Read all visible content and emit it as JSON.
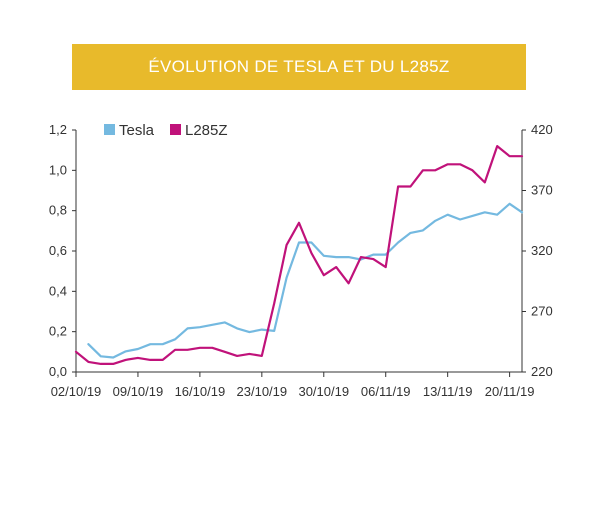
{
  "colors": {
    "title_bg": "#E8BA2B",
    "tesla": "#74B9E0",
    "l285z": "#C0127A",
    "axis": "#333333"
  },
  "chart_data": {
    "type": "line",
    "title": "ÉVOLUTION DE TESLA ET DU L285Z",
    "legend": {
      "position": "top-left",
      "entries": [
        "Tesla",
        "L285Z"
      ]
    },
    "grid": false,
    "x_ticks": [
      "02/10/19",
      "09/10/19",
      "16/10/19",
      "23/10/19",
      "30/10/19",
      "06/11/19",
      "13/11/19",
      "20/11/19"
    ],
    "y_left": {
      "ticks": [
        "0,0",
        "0,2",
        "0,4",
        "0,6",
        "0,8",
        "1,0",
        "1,2"
      ],
      "range": [
        0,
        1.2
      ]
    },
    "y_right": {
      "ticks": [
        "220",
        "270",
        "320",
        "370",
        "420"
      ],
      "range": [
        220,
        420
      ]
    },
    "series": [
      {
        "name": "Tesla",
        "axis": "right",
        "x": [
          1,
          2,
          3,
          4,
          5,
          6,
          7,
          8,
          9,
          10,
          11,
          12,
          13,
          14,
          15,
          16,
          17,
          18,
          19,
          20,
          21,
          22,
          23,
          24,
          25,
          26,
          27,
          28,
          29,
          30,
          31,
          32,
          33,
          34,
          35,
          36
        ],
        "values": [
          243,
          233,
          232,
          237,
          239,
          243,
          243,
          247,
          256,
          257,
          259,
          261,
          256,
          253,
          255,
          254,
          298,
          327,
          327,
          316,
          315,
          315,
          313,
          317,
          317,
          327,
          335,
          337,
          345,
          350,
          346,
          349,
          352,
          350,
          359,
          352
        ]
      },
      {
        "name": "L285Z",
        "axis": "left",
        "x": [
          0,
          1,
          2,
          3,
          4,
          5,
          6,
          7,
          8,
          9,
          10,
          11,
          12,
          13,
          14,
          15,
          16,
          17,
          18,
          19,
          20,
          21,
          22,
          23,
          24,
          25,
          26,
          27,
          28,
          29,
          30,
          31,
          32,
          33,
          34,
          35,
          36
        ],
        "values": [
          0.1,
          0.05,
          0.04,
          0.04,
          0.06,
          0.07,
          0.06,
          0.06,
          0.11,
          0.11,
          0.12,
          0.12,
          0.1,
          0.08,
          0.09,
          0.08,
          0.34,
          0.63,
          0.74,
          0.59,
          0.48,
          0.52,
          0.44,
          0.57,
          0.56,
          0.52,
          0.92,
          0.92,
          1.0,
          1.0,
          1.03,
          1.03,
          1.0,
          0.94,
          1.12,
          1.07,
          1.07
        ]
      }
    ]
  }
}
